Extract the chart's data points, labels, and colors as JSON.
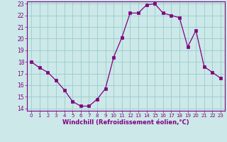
{
  "x": [
    0,
    1,
    2,
    3,
    4,
    5,
    6,
    7,
    8,
    9,
    10,
    11,
    12,
    13,
    14,
    15,
    16,
    17,
    18,
    19,
    20,
    21,
    22,
    23
  ],
  "y": [
    18.0,
    17.5,
    17.1,
    16.4,
    15.6,
    14.6,
    14.2,
    14.2,
    14.8,
    15.7,
    18.4,
    20.1,
    22.2,
    22.2,
    22.9,
    23.0,
    22.2,
    22.0,
    21.8,
    19.3,
    20.7,
    17.6,
    17.1,
    16.6
  ],
  "line_color": "#800080",
  "marker_color": "#800080",
  "bg_color": "#cce8e8",
  "grid_color": "#99cccc",
  "xlabel": "Windchill (Refroidissement éolien,°C)",
  "xlabel_color": "#800080",
  "tick_color": "#800080",
  "spine_color": "#800080",
  "ylim": [
    13.8,
    23.2
  ],
  "xlim": [
    -0.5,
    23.5
  ],
  "yticks": [
    14,
    15,
    16,
    17,
    18,
    19,
    20,
    21,
    22,
    23
  ],
  "xticks": [
    0,
    1,
    2,
    3,
    4,
    5,
    6,
    7,
    8,
    9,
    10,
    11,
    12,
    13,
    14,
    15,
    16,
    17,
    18,
    19,
    20,
    21,
    22,
    23
  ],
  "ylabel_fontsize": 5.5,
  "xlabel_fontsize": 6.0,
  "tick_fontsize": 5.5,
  "xtick_fontsize": 5.0
}
